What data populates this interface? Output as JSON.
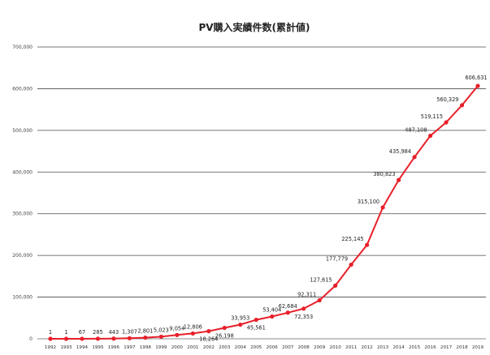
{
  "chart_data": {
    "type": "line",
    "title": "PV購入実績件数(累計値)",
    "xlabel": "",
    "ylabel": "",
    "ylim": [
      0,
      700000
    ],
    "grid": true,
    "legend": "none",
    "y_ticks": [
      "0",
      "100,000",
      "200,000",
      "300,000",
      "400,000",
      "500,000",
      "600,000",
      "700,000"
    ],
    "categories": [
      "1992",
      "1993",
      "1994",
      "1995",
      "1996",
      "1997",
      "1998",
      "1999",
      "2000",
      "2001",
      "2002",
      "2003",
      "2004",
      "2005",
      "2006",
      "2007",
      "2008",
      "2009",
      "2010",
      "2011",
      "2012",
      "2013",
      "2014",
      "2015",
      "2016",
      "2017",
      "2018",
      "2019"
    ],
    "series": [
      {
        "values": [
          1,
          1,
          67,
          285,
          443,
          1307,
          2801,
          5023,
          9054,
          12806,
          18264,
          26198,
          33953,
          45561,
          53404,
          62684,
          72353,
          92311,
          127615,
          177779,
          225145,
          315100,
          380823,
          435984,
          487108,
          519115,
          560329,
          606631
        ]
      }
    ],
    "data_labels": [
      "1",
      "1",
      "67",
      "285",
      "443",
      "1,307",
      "2,801",
      "5,023",
      "9,054",
      "12,806",
      "18,264",
      "26,198",
      "33,953",
      "45,561",
      "53,404",
      "62,684",
      "72,353",
      "92,311",
      "127,615",
      "177,779",
      "225,145",
      "315,100",
      "380,823",
      "435,984",
      "487,108",
      "519,115",
      "560,329",
      "606,631"
    ],
    "color": "#e8202a"
  }
}
